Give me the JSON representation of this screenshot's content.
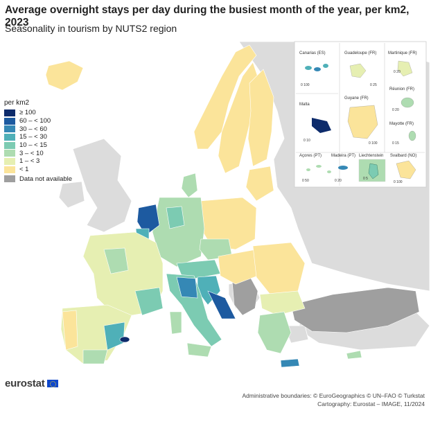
{
  "header": {
    "title": "Average overnight stays per day during the busiest month of the year, per km2, 2023",
    "subtitle": "Seasonality in tourism by NUTS2 region"
  },
  "legend": {
    "title": "per km2",
    "classes": [
      {
        "label": "≥ 100",
        "color": "#0d2b6b"
      },
      {
        "label": "60 – < 100",
        "color": "#1d5aa0"
      },
      {
        "label": "30 – < 60",
        "color": "#3588b5"
      },
      {
        "label": "15 – < 30",
        "color": "#4fb0b8"
      },
      {
        "label": "10 – < 15",
        "color": "#7ccbb2"
      },
      {
        "label": "3 – < 10",
        "color": "#aedcb1"
      },
      {
        "label": "1 – < 3",
        "color": "#e6efb2"
      },
      {
        "label": "< 1",
        "color": "#fbe49a"
      }
    ],
    "not_available": {
      "label": "Data not available",
      "color": "#9f9f9f"
    }
  },
  "insets": [
    {
      "name": "Canarias (ES)",
      "scale": "0   100"
    },
    {
      "name": "Guadeloupe (FR)",
      "scale": "0   25"
    },
    {
      "name": "Martinique (FR)",
      "scale": "0   20"
    },
    {
      "name": "Réunion (FR)",
      "scale": "0   20"
    },
    {
      "name": "Malta",
      "scale": "0   10"
    },
    {
      "name": "Guyane (FR)",
      "scale": "0   100"
    },
    {
      "name": "Mayotte (FR)",
      "scale": "0   15"
    },
    {
      "name": "Açores (PT)",
      "scale": "0   50"
    },
    {
      "name": "Madeira (PT)",
      "scale": "0   20"
    },
    {
      "name": "Liechtenstein",
      "scale": "0   5"
    },
    {
      "name": "Svalbard (NO)",
      "scale": "0   100"
    }
  ],
  "footer": {
    "line1": "Administrative boundaries: © EuroGeographics © UN–FAO © Turkstat",
    "line2": "Cartography: Eurostat – IMAGE, 11/2024"
  },
  "brand": {
    "name": "eurostat"
  }
}
